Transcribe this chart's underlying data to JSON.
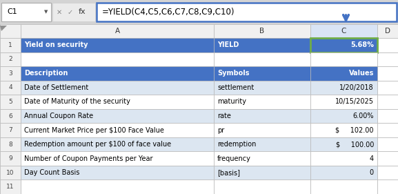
{
  "formula_bar_cell": "C1",
  "formula_bar_text": "=YIELD(C4,C5,C6,C7,C8,C9,C10)",
  "col_headers": [
    "A",
    "B",
    "C",
    "D"
  ],
  "rows": [
    {
      "row": 1,
      "A": "Yield on security",
      "B": "YIELD",
      "C": "5.68%",
      "bg": "#4472C4",
      "fg": "#FFFFFF",
      "C_align": "right",
      "C_selected": true,
      "bold": true
    },
    {
      "row": 2,
      "A": "",
      "B": "",
      "C": "",
      "bg": "#FFFFFF",
      "fg": "#000000",
      "C_align": "right",
      "C_selected": false,
      "bold": false
    },
    {
      "row": 3,
      "A": "Description",
      "B": "Symbols",
      "C": "Values",
      "bg": "#4472C4",
      "fg": "#FFFFFF",
      "C_align": "right",
      "C_selected": false,
      "bold": true
    },
    {
      "row": 4,
      "A": "Date of Settlement",
      "B": "settlement",
      "C": "1/20/2018",
      "bg": "#DCE6F1",
      "fg": "#000000",
      "C_align": "right",
      "C_selected": false,
      "bold": false
    },
    {
      "row": 5,
      "A": "Date of Maturity of the security",
      "B": "maturity",
      "C": "10/15/2025",
      "bg": "#FFFFFF",
      "fg": "#000000",
      "C_align": "right",
      "C_selected": false,
      "bold": false
    },
    {
      "row": 6,
      "A": "Annual Coupon Rate",
      "B": "rate",
      "C": "6.00%",
      "bg": "#DCE6F1",
      "fg": "#000000",
      "C_align": "right",
      "C_selected": false,
      "bold": false
    },
    {
      "row": 7,
      "A": "Current Market Price per $100 Face Value",
      "B": "pr",
      "C": "$     102.00",
      "bg": "#FFFFFF",
      "fg": "#000000",
      "C_align": "right",
      "C_selected": false,
      "bold": false
    },
    {
      "row": 8,
      "A": "Redemption amount per $100 of face value",
      "B": "redemption",
      "C": "$     100.00",
      "bg": "#DCE6F1",
      "fg": "#000000",
      "C_align": "right",
      "C_selected": false,
      "bold": false
    },
    {
      "row": 9,
      "A": "Number of Coupon Payments per Year",
      "B": "frequency",
      "C": "4",
      "bg": "#FFFFFF",
      "fg": "#000000",
      "C_align": "right",
      "C_selected": false,
      "bold": false
    },
    {
      "row": 10,
      "A": "Day Count Basis",
      "B": "[basis]",
      "C": "0",
      "bg": "#DCE6F1",
      "fg": "#000000",
      "C_align": "right",
      "C_selected": false,
      "bold": false
    },
    {
      "row": 11,
      "A": "",
      "B": "",
      "C": "",
      "bg": "#FFFFFF",
      "fg": "#000000",
      "C_align": "right",
      "C_selected": false,
      "bold": false
    }
  ],
  "fig_bg": "#D4D4D4",
  "header_bg": "#F0F0F0",
  "header_fg": "#333333",
  "grid_color": "#B8B8B8",
  "selected_cell_border": "#70AD47",
  "arrow_color": "#4472C4",
  "formula_border": "#4472C4"
}
